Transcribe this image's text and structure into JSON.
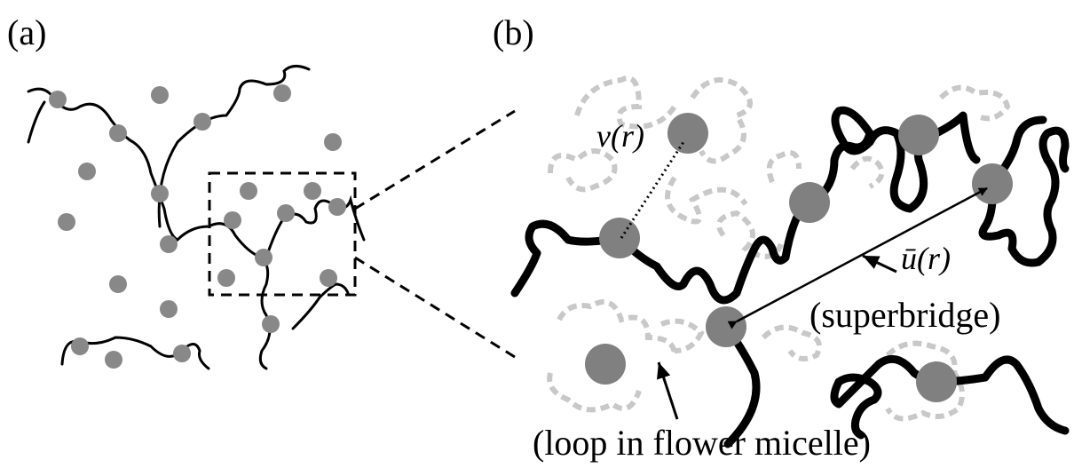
{
  "panel_a": {
    "label": "(a)"
  },
  "panel_b": {
    "label": "(b)",
    "potential_label": "v(r)",
    "vector_label": "ū(r)",
    "superbridge_label": "(superbridge)",
    "loop_label": "(loop in flower micelle)"
  }
}
